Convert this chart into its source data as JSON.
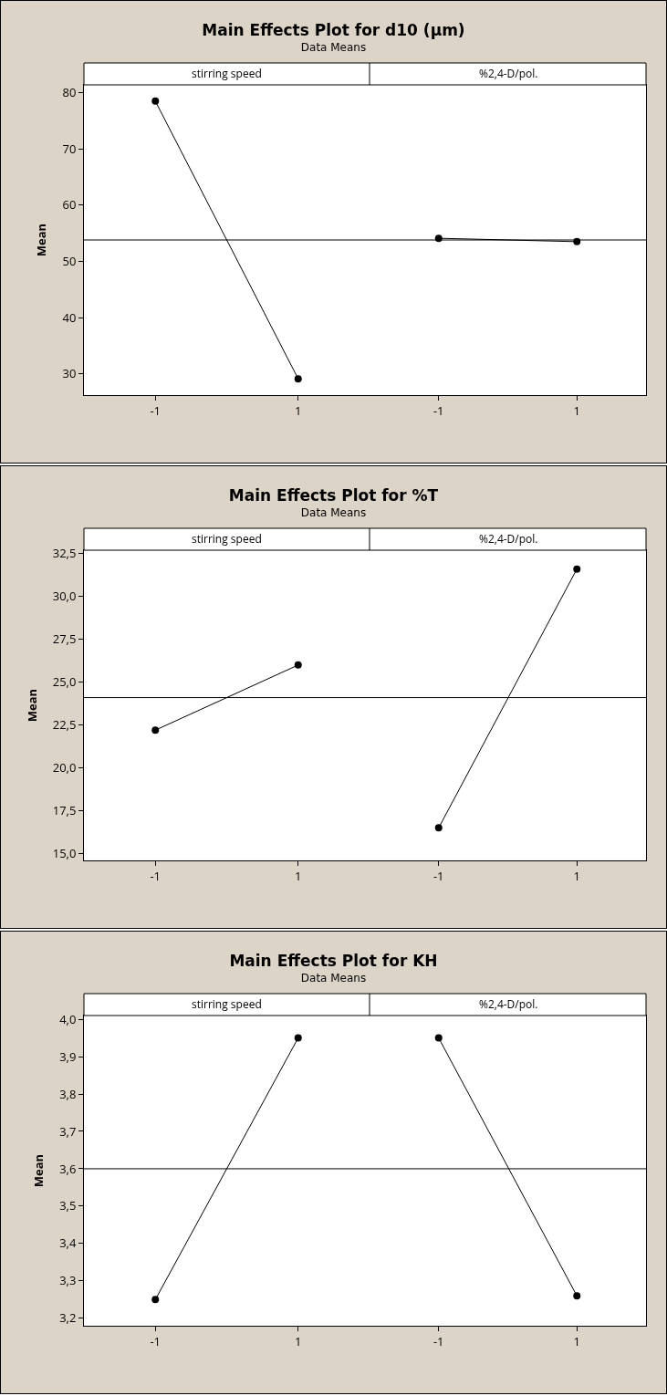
{
  "chart_data": [
    {
      "type": "line",
      "title": "Main Effects Plot for d10 (µm)",
      "subtitle": "Data Means",
      "ylabel": "Mean",
      "annotations": [
        "stirring speed"
      ],
      "categories": [
        "-1",
        "1"
      ],
      "series": [
        {
          "color": "#000000",
          "values": [
            78.5,
            29.1
          ]
        }
      ],
      "ylim": [
        26.2,
        81.4
      ],
      "yticks": [
        30,
        40,
        50,
        60,
        70,
        80
      ],
      "ref_lines": [
        {
          "axis": "y",
          "value": 53.8
        }
      ],
      "marker": "circle",
      "line_style": "solid"
    },
    {
      "type": "line",
      "annotations": [
        "%2,4-D/pol."
      ],
      "categories": [
        "-1",
        "1"
      ],
      "series": [
        {
          "color": "#000000",
          "values": [
            54.1,
            53.5
          ]
        }
      ],
      "ylim": [
        26.2,
        81.4
      ],
      "tick_labels": "x",
      "ref_lines": [
        {
          "axis": "y",
          "value": 53.8
        }
      ],
      "marker": "circle",
      "line_style": "solid"
    },
    {
      "type": "line",
      "title": "Main Effects Plot for %T",
      "subtitle": "Data Means",
      "ylabel": "Mean",
      "annotations": [
        "stirring speed"
      ],
      "categories": [
        "-1",
        "1"
      ],
      "series": [
        {
          "color": "#000000",
          "values": [
            22.2,
            26.0
          ]
        }
      ],
      "ylim": [
        14.6,
        32.7
      ],
      "yticks": [
        {
          "value": 15,
          "label": "15,0"
        },
        {
          "value": 17.5,
          "label": "17,5"
        },
        {
          "value": 20,
          "label": "20,0"
        },
        {
          "value": 22.5,
          "label": "22,5"
        },
        {
          "value": 25,
          "label": "25,0"
        },
        {
          "value": 27.5,
          "label": "27,5"
        },
        {
          "value": 30,
          "label": "30,0"
        },
        {
          "value": 32.5,
          "label": "32,5"
        }
      ],
      "ref_lines": [
        {
          "axis": "y",
          "value": 24.1
        }
      ],
      "marker": "circle",
      "line_style": "solid"
    },
    {
      "type": "line",
      "annotations": [
        "%2,4-D/pol."
      ],
      "categories": [
        "-1",
        "1"
      ],
      "series": [
        {
          "color": "#000000",
          "values": [
            16.5,
            31.6
          ]
        }
      ],
      "ylim": [
        14.6,
        32.7
      ],
      "tick_labels": "x",
      "ref_lines": [
        {
          "axis": "y",
          "value": 24.1
        }
      ],
      "marker": "circle",
      "line_style": "solid"
    },
    {
      "type": "line",
      "title": "Main Effects Plot for KH",
      "subtitle": "Data Means",
      "ylabel": "Mean",
      "annotations": [
        "stirring speed"
      ],
      "categories": [
        "-1",
        "1"
      ],
      "series": [
        {
          "color": "#000000",
          "values": [
            3.25,
            3.95
          ]
        }
      ],
      "ylim": [
        3.18,
        4.01
      ],
      "yticks": [
        {
          "value": 3.2,
          "label": "3,2"
        },
        {
          "value": 3.3,
          "label": "3,3"
        },
        {
          "value": 3.4,
          "label": "3,4"
        },
        {
          "value": 3.5,
          "label": "3,5"
        },
        {
          "value": 3.6,
          "label": "3,6"
        },
        {
          "value": 3.7,
          "label": "3,7"
        },
        {
          "value": 3.8,
          "label": "3,8"
        },
        {
          "value": 3.9,
          "label": "3,9"
        },
        {
          "value": 4.0,
          "label": "4,0"
        }
      ],
      "ref_lines": [
        {
          "axis": "y",
          "value": 3.6
        }
      ],
      "marker": "circle",
      "line_style": "solid"
    },
    {
      "type": "line",
      "annotations": [
        "%2,4-D/pol."
      ],
      "categories": [
        "-1",
        "1"
      ],
      "series": [
        {
          "color": "#000000",
          "values": [
            3.95,
            3.26
          ]
        }
      ],
      "ylim": [
        3.18,
        4.01
      ],
      "tick_labels": "x",
      "ref_lines": [
        {
          "axis": "y",
          "value": 3.6
        }
      ],
      "marker": "circle",
      "line_style": "solid"
    }
  ]
}
